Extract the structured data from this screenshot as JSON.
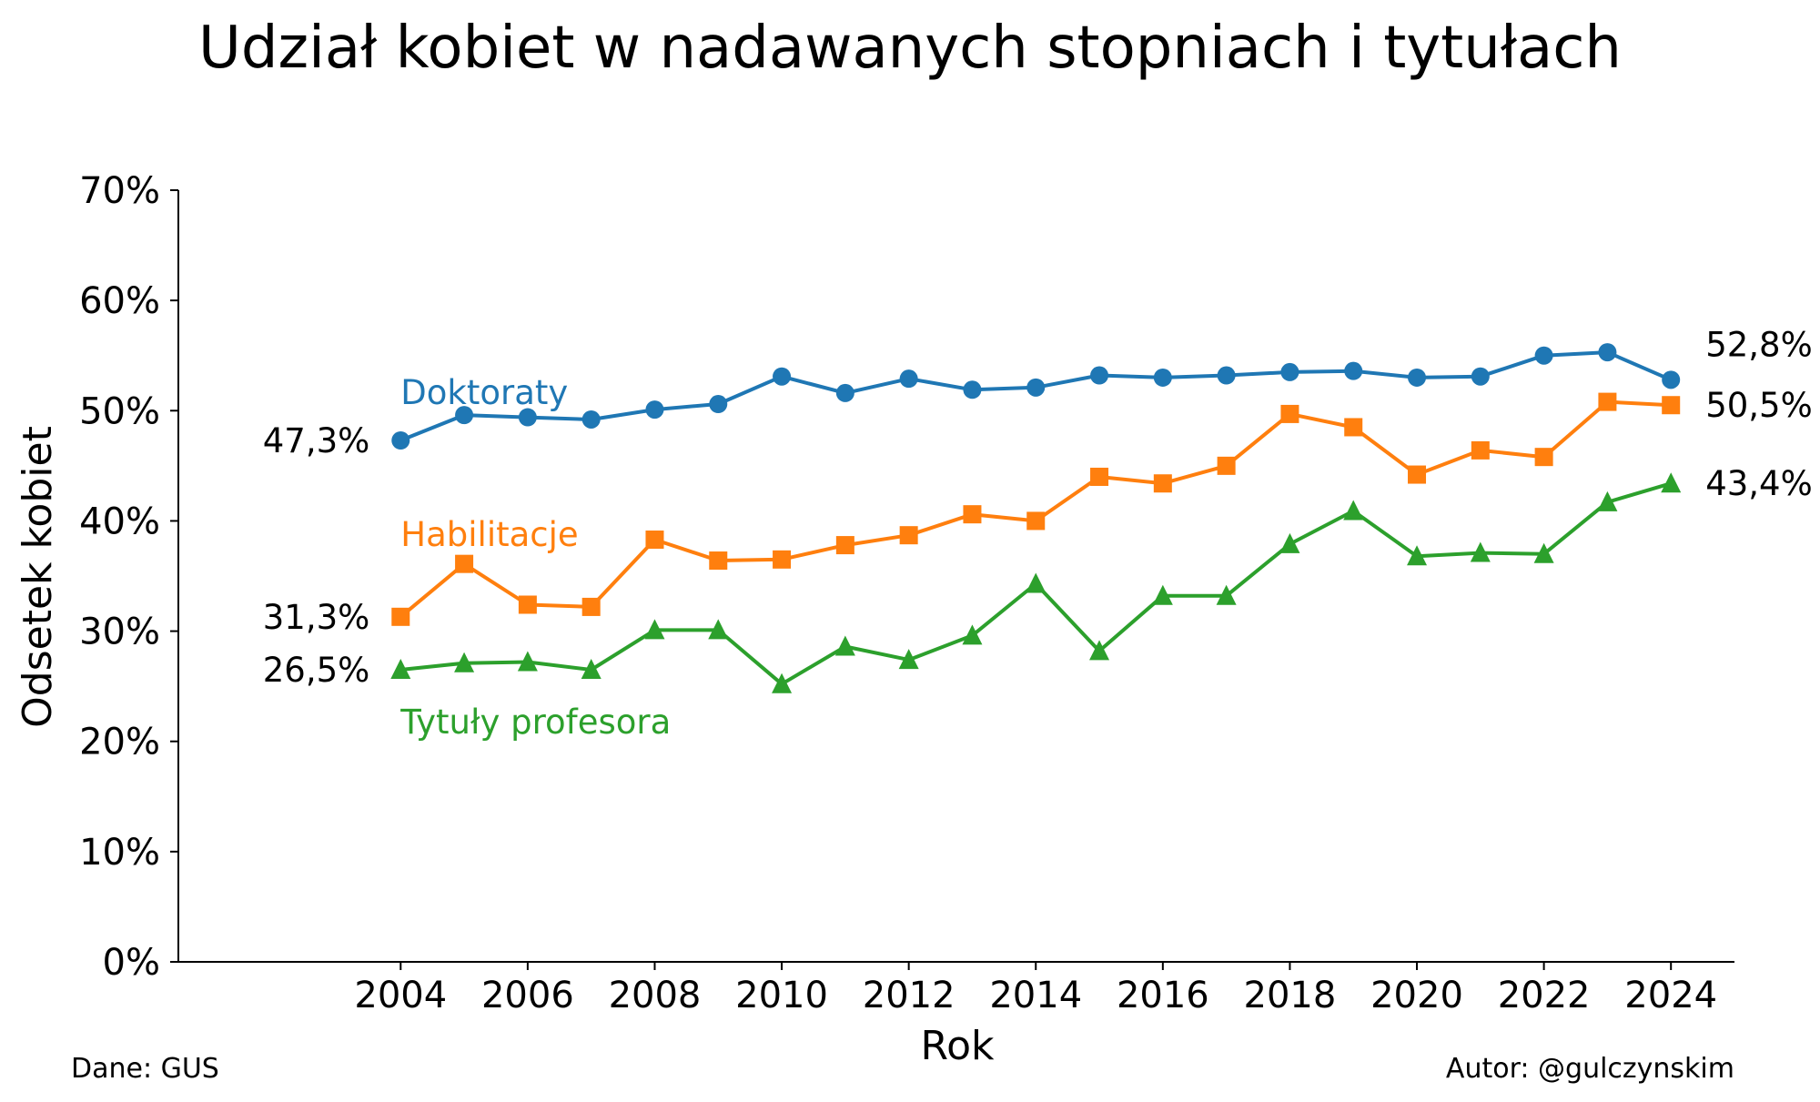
{
  "chart_data": {
    "type": "line",
    "title": "Udział kobiet w nadawanych stopniach i tytułach",
    "xlabel": "Rok",
    "ylabel": "Odsetek kobiet",
    "xlim": [
      2000.5,
      2025
    ],
    "ylim": [
      0,
      70
    ],
    "x": [
      2004,
      2005,
      2006,
      2007,
      2008,
      2009,
      2010,
      2011,
      2012,
      2013,
      2014,
      2015,
      2016,
      2017,
      2018,
      2019,
      2020,
      2021,
      2022,
      2023,
      2024
    ],
    "x_ticks": [
      2004,
      2006,
      2008,
      2010,
      2012,
      2014,
      2016,
      2018,
      2020,
      2022,
      2024
    ],
    "x_tick_labels": [
      "2004",
      "2006",
      "2008",
      "2010",
      "2012",
      "2014",
      "2016",
      "2018",
      "2020",
      "2022",
      "2024"
    ],
    "y_ticks": [
      0,
      10,
      20,
      30,
      40,
      50,
      60,
      70
    ],
    "y_tick_labels": [
      "0%",
      "10%",
      "20%",
      "30%",
      "40%",
      "50%",
      "60%",
      "70%"
    ],
    "grid": false,
    "series": [
      {
        "name": "Doktoraty",
        "color": "#1f77b4",
        "marker": "circle",
        "values": [
          47.3,
          49.6,
          49.4,
          49.2,
          50.1,
          50.6,
          53.1,
          51.6,
          52.9,
          51.9,
          52.1,
          53.2,
          53.0,
          53.2,
          53.5,
          53.6,
          53.0,
          53.1,
          55.0,
          55.3,
          52.8
        ],
        "start_label": "47,3%",
        "end_label": "52,8%"
      },
      {
        "name": "Habilitacje",
        "color": "#ff7f0e",
        "marker": "square",
        "values": [
          31.3,
          36.1,
          32.4,
          32.2,
          38.3,
          36.4,
          36.5,
          37.8,
          38.7,
          40.6,
          40.0,
          44.0,
          43.4,
          45.0,
          49.7,
          48.5,
          44.2,
          46.4,
          45.8,
          50.8,
          50.5
        ],
        "start_label": "31,3%",
        "end_label": "50,5%"
      },
      {
        "name": "Tytuły profesora",
        "color": "#2ca02c",
        "marker": "triangle",
        "values": [
          26.5,
          27.1,
          27.2,
          26.5,
          30.1,
          30.1,
          25.2,
          28.6,
          27.4,
          29.6,
          34.3,
          28.2,
          33.2,
          33.2,
          37.9,
          40.9,
          36.8,
          37.1,
          37.0,
          41.7,
          43.4
        ],
        "start_label": "26,5%",
        "end_label": "43,4%"
      }
    ]
  },
  "footer": {
    "source": "Dane: GUS",
    "author": "Autor: @gulczynskim"
  }
}
